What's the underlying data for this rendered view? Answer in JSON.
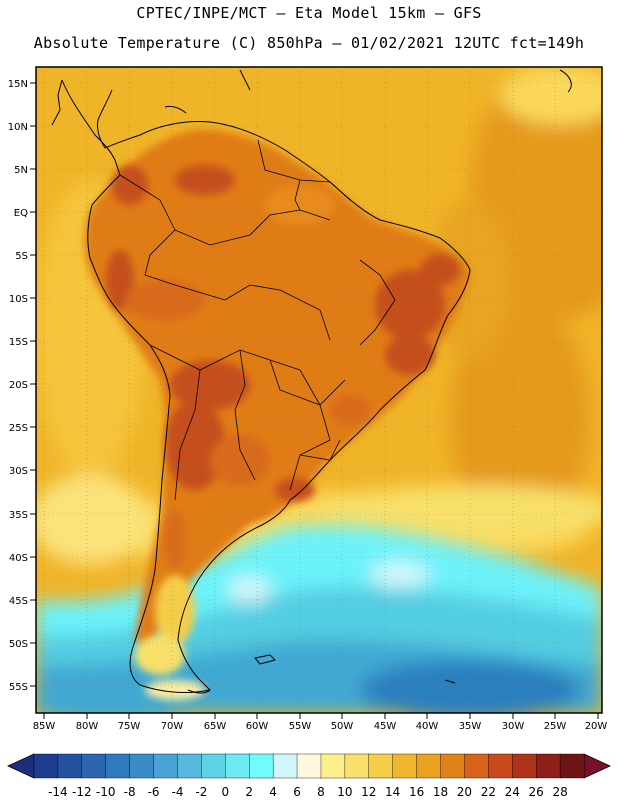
{
  "header": {
    "title_line1": "CPTEC/INPE/MCT –  Eta Model 15km – GFS",
    "title_line2": "Absolute Temperature (C) 850hPa – 01/02/2021 12UTC fct=149h"
  },
  "map": {
    "lat_labels": [
      "15N",
      "10N",
      "5N",
      "EQ",
      "5S",
      "10S",
      "15S",
      "20S",
      "25S",
      "30S",
      "35S",
      "40S",
      "45S",
      "50S",
      "55S"
    ],
    "lon_labels": [
      "85W",
      "80W",
      "75W",
      "70W",
      "65W",
      "60W",
      "55W",
      "50W",
      "45W",
      "40W",
      "35W",
      "30W",
      "25W",
      "20W"
    ],
    "colors": {
      "ocean_tropical": "#F0B428",
      "ocean_warm": "#E59A1A",
      "land_warm": "#E07B16",
      "land_hot": "#C5501E",
      "subtropic_pale": "#FAD85A",
      "cold_cyan": "#6CF2FA",
      "cold_light": "#52CDE2",
      "cold_mid": "#3FA8D2",
      "cold_deep": "#2A7FBF",
      "coastline": "#000000"
    }
  },
  "colorbar": {
    "labels": [
      "-14",
      "-12",
      "-10",
      "-8",
      "-6",
      "-4",
      "-2",
      "0",
      "2",
      "4",
      "6",
      "8",
      "10",
      "12",
      "14",
      "16",
      "18",
      "20",
      "22",
      "24",
      "26",
      "28"
    ],
    "colors": [
      "#1F3D8F",
      "#2552A0",
      "#2B66AF",
      "#3079BD",
      "#3A8CC8",
      "#4AA3D4",
      "#56BADC",
      "#5FD3E6",
      "#6CE9F2",
      "#70FCFC",
      "#D0F6FA",
      "#FFF8DF",
      "#FCF08C",
      "#F8E06A",
      "#F4CE48",
      "#F0B72E",
      "#EBA01E",
      "#E0821A",
      "#D8621A",
      "#C84A1A",
      "#B0341A",
      "#8E1E18",
      "#6E1414"
    ],
    "left_arrow_color": "#1E2E7E",
    "right_arrow_color": "#7A0F2A"
  }
}
